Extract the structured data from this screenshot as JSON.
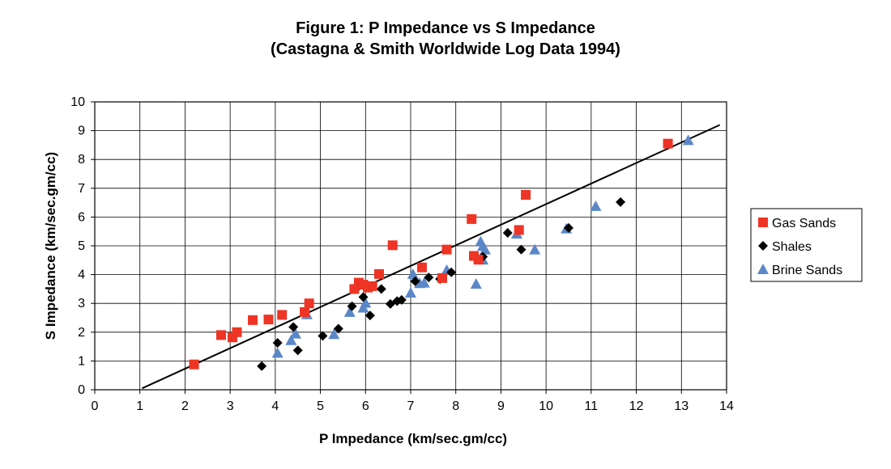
{
  "colors": {
    "gas_sands": "#ee3424",
    "shales": "#000000",
    "brine_sands": "#5b87c8",
    "grid": "#000000",
    "trend_line": "#000000"
  },
  "chart_data": {
    "type": "scatter",
    "title": "Figure 1: P Impedance vs S Impedance",
    "subtitle": "(Castagna & Smith Worldwide Log Data 1994)",
    "xlabel": "P Impedance (km/sec.gm/cc)",
    "ylabel": "S Impedance (km/sec.gm/cc)",
    "xlim": [
      0,
      14
    ],
    "ylim": [
      0,
      10
    ],
    "x_ticks": [
      "0",
      "1",
      "2",
      "3",
      "4",
      "5",
      "6",
      "7",
      "8",
      "9",
      "10",
      "11",
      "12",
      "13",
      "14"
    ],
    "y_ticks": [
      "0",
      "1",
      "2",
      "3",
      "4",
      "5",
      "6",
      "7",
      "8",
      "9",
      "10"
    ],
    "grid": true,
    "legend_position": "right",
    "trend_line": {
      "x": [
        1.05,
        13.85
      ],
      "y": [
        0.05,
        9.2
      ]
    },
    "series": [
      {
        "name": "Gas Sands",
        "marker": "square",
        "color": "#ee3424",
        "points": [
          [
            2.2,
            0.88
          ],
          [
            2.8,
            1.9
          ],
          [
            3.05,
            1.82
          ],
          [
            3.15,
            2.0
          ],
          [
            3.5,
            2.42
          ],
          [
            3.85,
            2.44
          ],
          [
            4.15,
            2.6
          ],
          [
            4.65,
            2.7
          ],
          [
            4.75,
            3.0
          ],
          [
            5.75,
            3.5
          ],
          [
            5.85,
            3.72
          ],
          [
            5.95,
            3.65
          ],
          [
            6.05,
            3.55
          ],
          [
            6.15,
            3.6
          ],
          [
            6.3,
            4.02
          ],
          [
            6.6,
            5.02
          ],
          [
            7.25,
            4.25
          ],
          [
            7.7,
            3.88
          ],
          [
            7.8,
            4.87
          ],
          [
            8.35,
            5.93
          ],
          [
            8.4,
            4.65
          ],
          [
            8.5,
            4.52
          ],
          [
            9.4,
            5.55
          ],
          [
            9.55,
            6.77
          ],
          [
            12.7,
            8.55
          ]
        ]
      },
      {
        "name": "Shales",
        "marker": "diamond",
        "color": "#000000",
        "points": [
          [
            3.7,
            0.82
          ],
          [
            4.05,
            1.63
          ],
          [
            4.4,
            2.18
          ],
          [
            4.5,
            1.37
          ],
          [
            5.05,
            1.87
          ],
          [
            5.4,
            2.12
          ],
          [
            5.7,
            2.9
          ],
          [
            5.95,
            3.22
          ],
          [
            6.1,
            2.58
          ],
          [
            6.35,
            3.5
          ],
          [
            6.55,
            2.98
          ],
          [
            6.7,
            3.08
          ],
          [
            6.8,
            3.12
          ],
          [
            7.1,
            3.77
          ],
          [
            7.4,
            3.9
          ],
          [
            7.65,
            3.85
          ],
          [
            7.9,
            4.08
          ],
          [
            8.6,
            4.62
          ],
          [
            9.15,
            5.45
          ],
          [
            9.45,
            4.87
          ],
          [
            10.5,
            5.62
          ],
          [
            11.65,
            6.52
          ]
        ]
      },
      {
        "name": "Brine Sands",
        "marker": "triangle",
        "color": "#5b87c8",
        "points": [
          [
            4.05,
            1.28
          ],
          [
            4.35,
            1.72
          ],
          [
            4.45,
            1.95
          ],
          [
            4.7,
            2.62
          ],
          [
            5.3,
            1.93
          ],
          [
            5.65,
            2.7
          ],
          [
            5.95,
            2.85
          ],
          [
            6.0,
            3.02
          ],
          [
            7.0,
            3.37
          ],
          [
            7.05,
            4.02
          ],
          [
            7.2,
            3.7
          ],
          [
            7.3,
            3.72
          ],
          [
            7.8,
            4.16
          ],
          [
            8.45,
            3.68
          ],
          [
            8.55,
            5.15
          ],
          [
            8.6,
            5.0
          ],
          [
            8.6,
            4.52
          ],
          [
            8.65,
            4.87
          ],
          [
            9.35,
            5.42
          ],
          [
            9.75,
            4.87
          ],
          [
            10.45,
            5.6
          ],
          [
            11.1,
            6.38
          ],
          [
            13.15,
            8.67
          ]
        ]
      }
    ]
  }
}
